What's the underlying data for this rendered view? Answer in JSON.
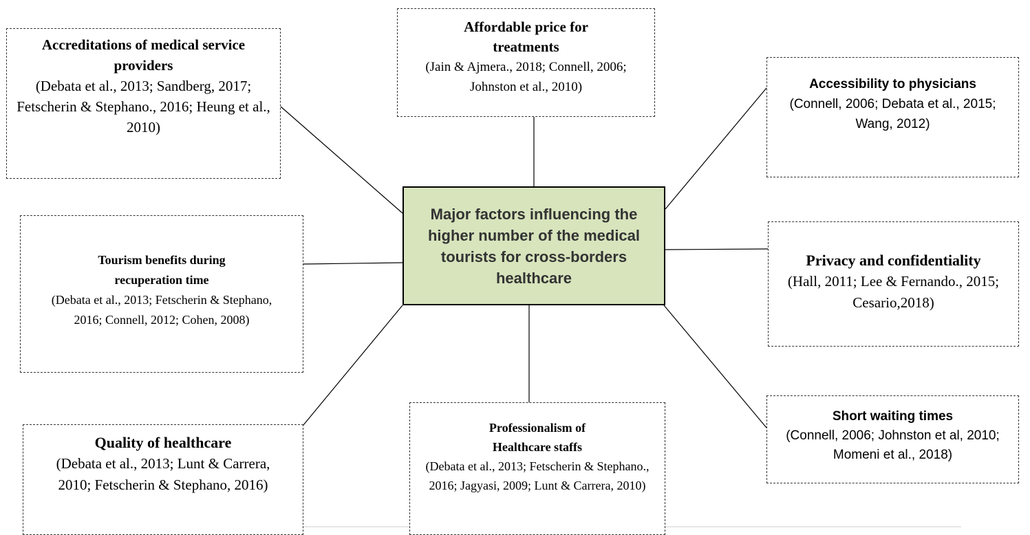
{
  "center": {
    "label": "Major factors influencing the higher number of the medical tourists for cross-borders healthcare"
  },
  "nodes": [
    {
      "title": "Accreditations of medical service providers",
      "refs": "(Debata et al., 2013; Sandberg, 2017; Fetscherin & Stephano., 2016; Heung et al., 2010)"
    },
    {
      "title": "Affordable price for treatments",
      "refs": "(Jain & Ajmera., 2018; Connell, 2006; Johnston et al., 2010)"
    },
    {
      "title": "Accessibility to physicians",
      "refs": "(Connell, 2006; Debata et al., 2015; Wang, 2012)"
    },
    {
      "title": "Tourism benefits during recuperation time",
      "refs": "(Debata et al., 2013; Fetscherin & Stephano, 2016; Connell, 2012; Cohen, 2008)"
    },
    {
      "title": "Privacy and confidentiality",
      "refs": "(Hall, 2011; Lee & Fernando., 2015; Cesario,2018)"
    },
    {
      "title": "Quality of healthcare",
      "refs": "(Debata et al., 2013; Lunt & Carrera, 2010; Fetscherin & Stephano, 2016)"
    },
    {
      "title": "Professionalism of Healthcare staffs",
      "refs": "(Debata et al., 2013; Fetscherin & Stephano., 2016; Jagyasi, 2009; Lunt & Carrera, 2010)"
    },
    {
      "title": "Short waiting times",
      "refs": "(Connell, 2006; Johnston et al, 2010; Momeni et al., 2018)"
    }
  ]
}
